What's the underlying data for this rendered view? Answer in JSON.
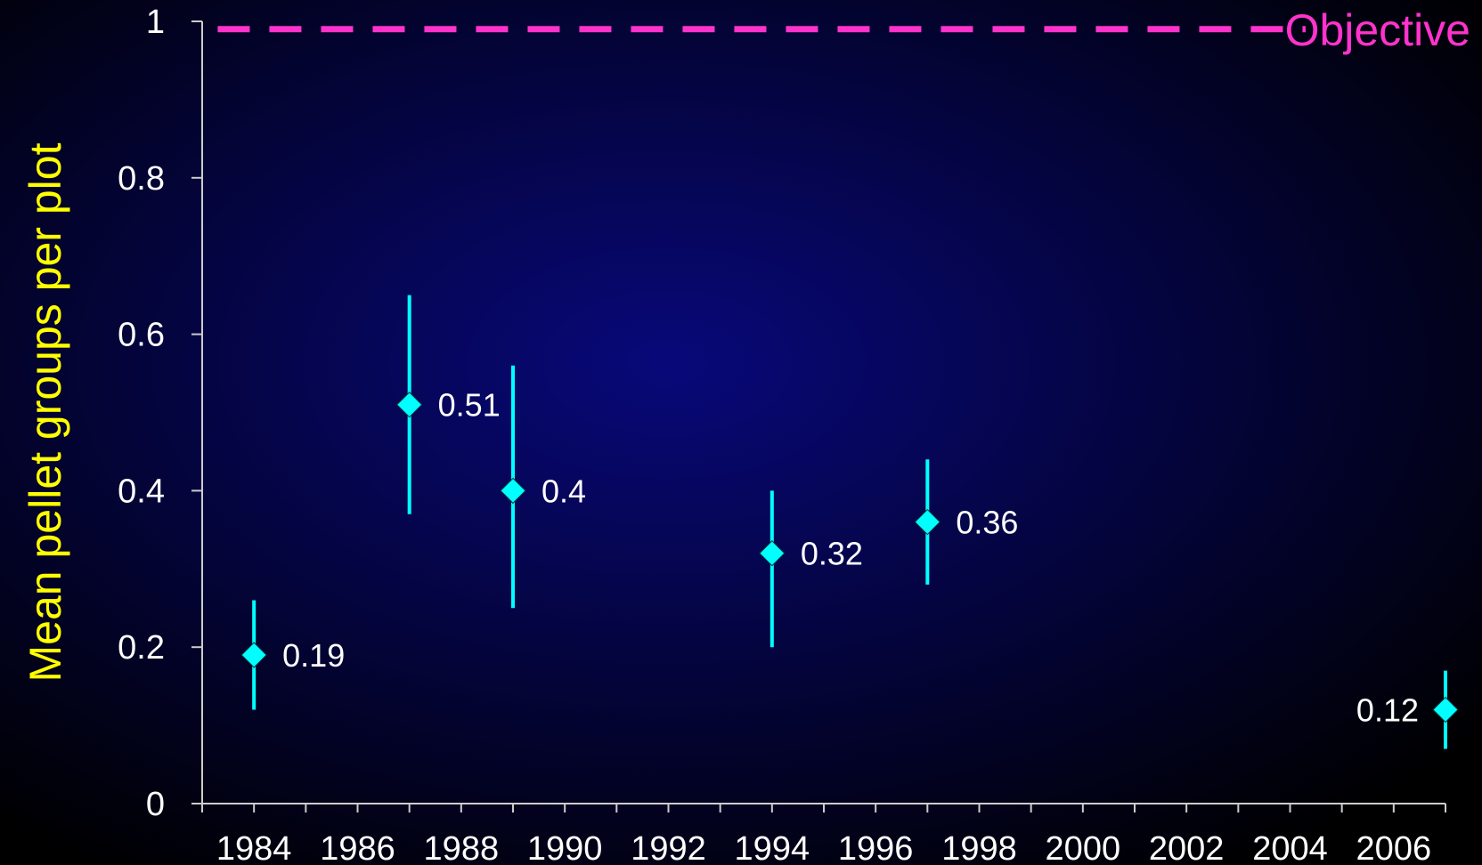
{
  "chart_data": {
    "type": "scatter",
    "title": "",
    "xlabel": "",
    "ylabel": "Mean pellet groups per plot",
    "xlim": [
      1983,
      2007
    ],
    "ylim": [
      0,
      1
    ],
    "x_ticks": [
      1984,
      1986,
      1988,
      1990,
      1992,
      1994,
      1996,
      1998,
      2000,
      2002,
      2004,
      2006
    ],
    "y_ticks": [
      0,
      0.2,
      0.4,
      0.6,
      0.8,
      1
    ],
    "y_tick_labels": [
      "0",
      "0.2",
      "0.4",
      "0.6",
      "0.8",
      "1"
    ],
    "grid": false,
    "series": [
      {
        "points": [
          {
            "x": 1984,
            "y": 0.19,
            "low": 0.12,
            "high": 0.26,
            "label": "0.19",
            "label_side": "right"
          },
          {
            "x": 1987,
            "y": 0.51,
            "low": 0.37,
            "high": 0.65,
            "label": "0.51",
            "label_side": "right"
          },
          {
            "x": 1989,
            "y": 0.4,
            "low": 0.25,
            "high": 0.56,
            "label": "0.4",
            "label_side": "right"
          },
          {
            "x": 1994,
            "y": 0.32,
            "low": 0.2,
            "high": 0.4,
            "label": "0.32",
            "label_side": "right"
          },
          {
            "x": 1997,
            "y": 0.36,
            "low": 0.28,
            "high": 0.44,
            "label": "0.36",
            "label_side": "right"
          },
          {
            "x": 2007,
            "y": 0.12,
            "low": 0.07,
            "high": 0.17,
            "label": "0.12",
            "label_side": "left"
          }
        ]
      }
    ],
    "reference_line": {
      "y": 0.99,
      "x_start": 1983.3,
      "x_end": 2004.3,
      "label": "Objective",
      "style": "dashed"
    }
  },
  "colors": {
    "marker": "#00ffff",
    "error_bar": "#00ffff",
    "objective": "#ff33cc",
    "axis": "#cccccc",
    "text": "#ffffff",
    "ylabel": "#ffff00",
    "background_center": "#08087a",
    "background_edge": "#000000"
  }
}
